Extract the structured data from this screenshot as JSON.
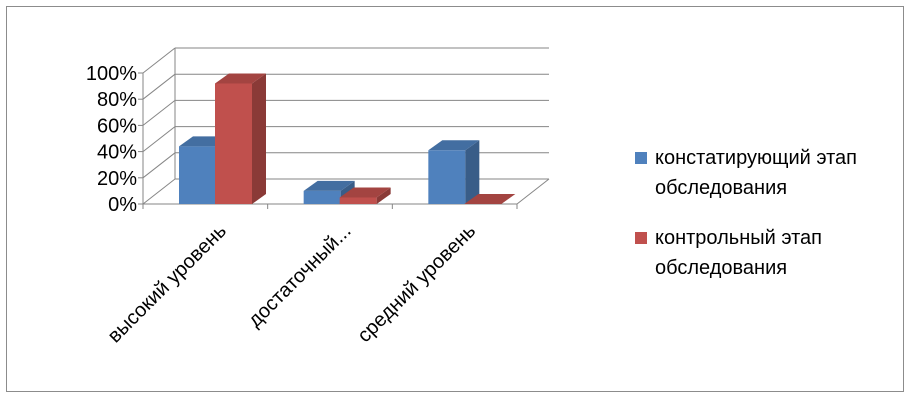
{
  "chart_data": {
    "type": "bar",
    "title": "",
    "xlabel": "",
    "ylabel": "",
    "categories": [
      "высокий уровень",
      "достаточный...",
      "средний уровень"
    ],
    "series": [
      {
        "name": "констатирующий этап обследования",
        "color": "#4F81BD",
        "values": [
          44,
          10,
          41
        ]
      },
      {
        "name": "контрольный этап обследования",
        "color": "#C0504D",
        "values": [
          92,
          5,
          0
        ]
      }
    ],
    "ylim": [
      0,
      100
    ],
    "y_ticks": [
      "0%",
      "20%",
      "40%",
      "60%",
      "80%",
      "100%"
    ],
    "grid": true,
    "legend_position": "right",
    "style": "3d-clustered-column"
  }
}
